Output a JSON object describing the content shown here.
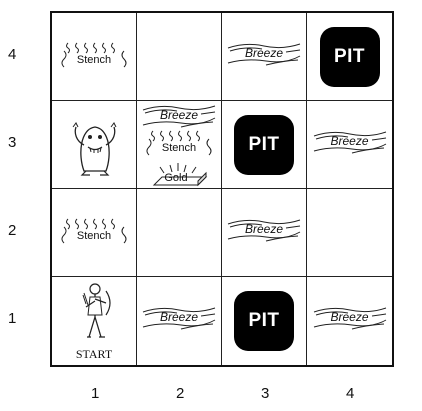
{
  "grid": {
    "rows": 4,
    "cols": 4,
    "row_labels": [
      "4",
      "3",
      "2",
      "1"
    ],
    "col_labels": [
      "1",
      "2",
      "3",
      "4"
    ]
  },
  "labels": {
    "pit": "PIT",
    "breeze": "Breeze",
    "stench": "Stench",
    "gold": "Gold",
    "start": "START"
  },
  "cells": [
    {
      "row": 4,
      "col": 1,
      "contents": [
        "stench"
      ]
    },
    {
      "row": 4,
      "col": 2,
      "contents": []
    },
    {
      "row": 4,
      "col": 3,
      "contents": [
        "breeze"
      ]
    },
    {
      "row": 4,
      "col": 4,
      "contents": [
        "pit"
      ]
    },
    {
      "row": 3,
      "col": 1,
      "contents": [
        "wumpus"
      ]
    },
    {
      "row": 3,
      "col": 2,
      "contents": [
        "breeze",
        "stench",
        "gold"
      ]
    },
    {
      "row": 3,
      "col": 3,
      "contents": [
        "pit"
      ]
    },
    {
      "row": 3,
      "col": 4,
      "contents": [
        "breeze"
      ]
    },
    {
      "row": 2,
      "col": 1,
      "contents": [
        "stench"
      ]
    },
    {
      "row": 2,
      "col": 2,
      "contents": []
    },
    {
      "row": 2,
      "col": 3,
      "contents": [
        "breeze"
      ]
    },
    {
      "row": 2,
      "col": 4,
      "contents": []
    },
    {
      "row": 1,
      "col": 1,
      "contents": [
        "agent",
        "start"
      ]
    },
    {
      "row": 1,
      "col": 2,
      "contents": [
        "breeze"
      ]
    },
    {
      "row": 1,
      "col": 3,
      "contents": [
        "pit"
      ]
    },
    {
      "row": 1,
      "col": 4,
      "contents": [
        "breeze"
      ]
    }
  ],
  "icons": {
    "wumpus": "wumpus-monster-icon",
    "agent": "agent-archer-icon",
    "gold": "gold-bar-icon",
    "stench": "stench-wavy-icon",
    "breeze": "breeze-wind-icon"
  }
}
